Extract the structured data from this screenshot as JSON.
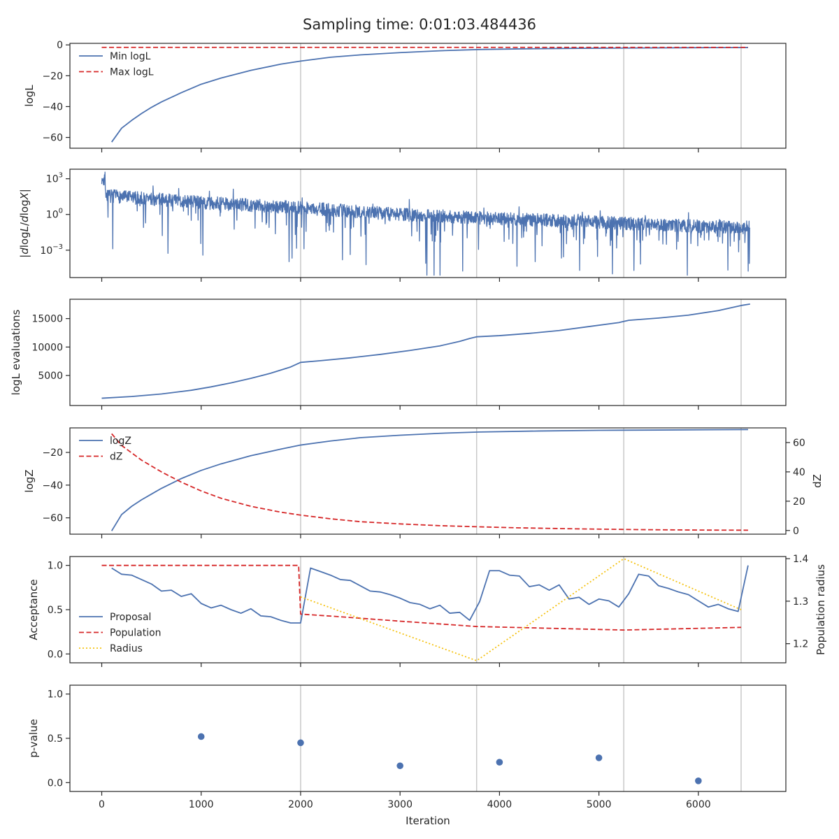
{
  "figure": {
    "title": "Sampling time: 0:01:03.484436",
    "xlabel": "Iteration",
    "x_ticks": [
      0,
      1000,
      2000,
      3000,
      4000,
      5000,
      6000
    ],
    "xlim": [
      -320,
      6880
    ],
    "vlines": [
      2000,
      3770,
      5250,
      6430
    ],
    "colors": {
      "blue": "#4c72b0",
      "red": "#d62728",
      "yellow": "#f5c211",
      "vline": "#c8c8c8",
      "axis": "#262626"
    }
  },
  "chart_data": [
    {
      "id": "logl",
      "type": "line",
      "ylabel": "logL",
      "ylim": [
        -67,
        1
      ],
      "y_ticks": [
        {
          "v": 0,
          "t": "0"
        },
        {
          "v": -20,
          "t": "−20"
        },
        {
          "v": -40,
          "t": "−40"
        },
        {
          "v": -60,
          "t": "−60"
        }
      ],
      "legend": "upper-left",
      "series": [
        {
          "name": "Min logL",
          "style": "solid",
          "color": "#4c72b0",
          "x": [
            100,
            200,
            300,
            400,
            500,
            600,
            700,
            800,
            1000,
            1200,
            1500,
            1800,
            2000,
            2300,
            2600,
            3000,
            3400,
            3800,
            4200,
            4800,
            5400,
            6000,
            6500
          ],
          "y": [
            -63,
            -54,
            -49,
            -44.5,
            -40.5,
            -37,
            -34,
            -31,
            -25.5,
            -21.5,
            -16.5,
            -12.5,
            -10.5,
            -8,
            -6.5,
            -5,
            -3.8,
            -3,
            -2.6,
            -2.2,
            -2,
            -1.8,
            -1.7
          ]
        },
        {
          "name": "Max logL",
          "style": "dashed",
          "color": "#d62728",
          "x": [
            0,
            6500
          ],
          "y": [
            -1.6,
            -1.6
          ]
        }
      ]
    },
    {
      "id": "dlogl",
      "type": "line",
      "ylabel": "|dlogL/dlogX|",
      "scale": "log",
      "ylim_exp": [
        -5.3,
        3.8
      ],
      "y_ticks": [
        {
          "e": 3
        },
        {
          "e": 0
        },
        {
          "e": -3
        }
      ],
      "series": [
        {
          "name": "",
          "style": "noise",
          "color": "#4c72b0",
          "x_range": [
            0,
            6520
          ],
          "trend_exp": [
            [
              0,
              1.6
            ],
            [
              1000,
              1.0
            ],
            [
              2000,
              0.55
            ],
            [
              3000,
              0.0
            ],
            [
              4000,
              -0.35
            ],
            [
              5000,
              -0.65
            ],
            [
              6000,
              -1.0
            ],
            [
              6520,
              -1.1
            ]
          ]
        }
      ]
    },
    {
      "id": "evals",
      "type": "line",
      "ylabel": "logL evaluations",
      "ylim": [
        -280,
        18400
      ],
      "y_ticks": [
        {
          "v": 15000,
          "t": "15000"
        },
        {
          "v": 10000,
          "t": "10000"
        },
        {
          "v": 5000,
          "t": "5000"
        }
      ],
      "series": [
        {
          "name": "",
          "style": "solid",
          "color": "#4c72b0",
          "x": [
            0,
            300,
            600,
            900,
            1100,
            1300,
            1500,
            1700,
            1900,
            2000,
            2200,
            2500,
            2800,
            3100,
            3400,
            3600,
            3700,
            3770,
            4000,
            4300,
            4600,
            4900,
            5200,
            5300,
            5600,
            5900,
            6200,
            6430,
            6520
          ],
          "y": [
            1000,
            1300,
            1750,
            2400,
            3000,
            3700,
            4500,
            5400,
            6500,
            7300,
            7600,
            8100,
            8700,
            9400,
            10200,
            11000,
            11500,
            11800,
            12000,
            12400,
            12900,
            13600,
            14300,
            14700,
            15100,
            15600,
            16400,
            17300,
            17550
          ]
        }
      ]
    },
    {
      "id": "logz",
      "type": "line",
      "ylabel": "logZ",
      "ylim": [
        -70,
        -5
      ],
      "y_ticks": [
        {
          "v": -20,
          "t": "−20"
        },
        {
          "v": -40,
          "t": "−40"
        },
        {
          "v": -60,
          "t": "−60"
        }
      ],
      "y2label": "dZ",
      "y2lim": [
        -2.5,
        70
      ],
      "y2_ticks": [
        {
          "v": 60,
          "t": "60"
        },
        {
          "v": 40,
          "t": "40"
        },
        {
          "v": 20,
          "t": "20"
        },
        {
          "v": 0,
          "t": "0"
        }
      ],
      "legend": "upper-left",
      "series": [
        {
          "name": "logZ",
          "style": "solid",
          "color": "#4c72b0",
          "axis": "left",
          "x": [
            100,
            200,
            300,
            400,
            500,
            600,
            800,
            1000,
            1200,
            1500,
            1800,
            2000,
            2300,
            2600,
            3000,
            3400,
            3800,
            4400,
            5000,
            5600,
            6500
          ],
          "y": [
            -68,
            -58,
            -53,
            -49,
            -45.5,
            -42,
            -36,
            -31,
            -27,
            -22,
            -18,
            -15.5,
            -13,
            -11,
            -9.5,
            -8.3,
            -7.5,
            -6.9,
            -6.5,
            -6.3,
            -6
          ]
        },
        {
          "name": "dZ",
          "style": "dashed",
          "color": "#d62728",
          "axis": "right",
          "x": [
            100,
            200,
            400,
            600,
            800,
            1000,
            1200,
            1500,
            1800,
            2000,
            2300,
            2600,
            3000,
            3400,
            3800,
            4200,
            4800,
            5400,
            6000,
            6500
          ],
          "y": [
            66,
            58,
            48,
            40,
            33,
            27,
            22,
            16.5,
            12.5,
            10.5,
            8,
            6,
            4.5,
            3.3,
            2.5,
            1.8,
            1.1,
            0.6,
            0.3,
            0.2
          ]
        }
      ]
    },
    {
      "id": "acceptance",
      "type": "line",
      "ylabel": "Acceptance",
      "ylim": [
        -0.1,
        1.1
      ],
      "y_ticks": [
        {
          "v": 1,
          "t": "1.0"
        },
        {
          "v": 0.5,
          "t": "0.5"
        },
        {
          "v": 0,
          "t": "0.0"
        }
      ],
      "y2label": "Population radius",
      "y2lim": [
        1.155,
        1.405
      ],
      "y2_ticks": [
        {
          "v": 1.4,
          "t": "1.4"
        },
        {
          "v": 1.3,
          "t": "1.3"
        },
        {
          "v": 1.2,
          "t": "1.2"
        }
      ],
      "legend": "lower-left",
      "series": [
        {
          "name": "Proposal",
          "style": "solid",
          "color": "#4c72b0",
          "axis": "left",
          "x": [
            100,
            200,
            300,
            400,
            500,
            600,
            700,
            800,
            900,
            1000,
            1100,
            1200,
            1300,
            1400,
            1500,
            1600,
            1700,
            1800,
            1900,
            2000,
            2100,
            2200,
            2300,
            2400,
            2500,
            2600,
            2700,
            2800,
            2900,
            3000,
            3100,
            3200,
            3300,
            3400,
            3500,
            3600,
            3700,
            3800,
            3900,
            4000,
            4100,
            4200,
            4300,
            4400,
            4500,
            4600,
            4700,
            4800,
            4900,
            5000,
            5100,
            5200,
            5300,
            5400,
            5500,
            5600,
            5700,
            5800,
            5900,
            6000,
            6100,
            6200,
            6300,
            6400,
            6500
          ],
          "y": [
            0.97,
            0.9,
            0.89,
            0.84,
            0.79,
            0.71,
            0.72,
            0.65,
            0.68,
            0.57,
            0.52,
            0.55,
            0.5,
            0.46,
            0.51,
            0.43,
            0.42,
            0.38,
            0.35,
            0.35,
            0.97,
            0.93,
            0.89,
            0.84,
            0.83,
            0.77,
            0.71,
            0.7,
            0.67,
            0.63,
            0.58,
            0.56,
            0.51,
            0.55,
            0.46,
            0.47,
            0.38,
            0.59,
            0.94,
            0.94,
            0.89,
            0.88,
            0.76,
            0.78,
            0.72,
            0.78,
            0.62,
            0.64,
            0.56,
            0.62,
            0.6,
            0.53,
            0.68,
            0.9,
            0.88,
            0.77,
            0.74,
            0.7,
            0.67,
            0.6,
            0.53,
            0.56,
            0.51,
            0.48,
            1.0
          ]
        },
        {
          "name": "Population",
          "style": "dashed",
          "color": "#d62728",
          "axis": "left",
          "x": [
            0,
            1980,
            2000,
            2400,
            3000,
            3770,
            4500,
            5250,
            6430
          ],
          "y": [
            1.0,
            1.0,
            0.45,
            0.42,
            0.37,
            0.31,
            0.29,
            0.27,
            0.3
          ]
        },
        {
          "name": "Radius",
          "style": "dotted",
          "color": "#f5c211",
          "axis": "right",
          "x": [
            2000,
            3770,
            5250,
            6430
          ],
          "y": [
            1.31,
            1.16,
            1.4,
            1.28
          ]
        }
      ]
    },
    {
      "id": "pvalue",
      "type": "scatter",
      "ylabel": "p-value",
      "ylim": [
        -0.1,
        1.1
      ],
      "y_ticks": [
        {
          "v": 1,
          "t": "1.0"
        },
        {
          "v": 0.5,
          "t": "0.5"
        },
        {
          "v": 0,
          "t": "0.0"
        }
      ],
      "series": [
        {
          "name": "",
          "color": "#4c72b0",
          "x": [
            1000,
            2000,
            3000,
            4000,
            5000,
            6000
          ],
          "y": [
            0.52,
            0.45,
            0.19,
            0.23,
            0.28,
            0.02
          ]
        }
      ]
    }
  ]
}
